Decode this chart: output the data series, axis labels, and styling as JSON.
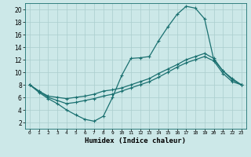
{
  "xlabel": "Humidex (Indice chaleur)",
  "bg_color": "#cce8e8",
  "grid_color": "#aacece",
  "line_color": "#1a7070",
  "xlim": [
    -0.5,
    23.5
  ],
  "ylim": [
    1,
    21
  ],
  "xticks": [
    0,
    1,
    2,
    3,
    4,
    5,
    6,
    7,
    8,
    9,
    10,
    11,
    12,
    13,
    14,
    15,
    16,
    17,
    18,
    19,
    20,
    21,
    22,
    23
  ],
  "yticks": [
    2,
    4,
    6,
    8,
    10,
    12,
    14,
    16,
    18,
    20
  ],
  "line1_x": [
    0,
    1,
    2,
    3,
    4,
    5,
    6,
    7,
    8,
    9,
    10,
    11,
    12,
    13,
    14,
    15,
    16,
    17,
    18,
    19,
    20,
    21,
    22,
    23
  ],
  "line1_y": [
    8.0,
    6.8,
    5.8,
    5.0,
    4.0,
    3.2,
    2.5,
    2.2,
    3.0,
    6.0,
    9.5,
    12.2,
    12.3,
    12.5,
    15.0,
    17.2,
    19.2,
    20.5,
    20.2,
    18.5,
    12.0,
    10.2,
    8.8,
    8.0
  ],
  "line2_x": [
    0,
    1,
    2,
    3,
    4,
    5,
    6,
    7,
    8,
    9,
    10,
    11,
    12,
    13,
    14,
    15,
    16,
    17,
    18,
    19,
    20,
    21,
    22,
    23
  ],
  "line2_y": [
    8.0,
    7.0,
    6.2,
    6.0,
    5.8,
    6.0,
    6.2,
    6.5,
    7.0,
    7.2,
    7.5,
    8.0,
    8.5,
    9.0,
    9.8,
    10.5,
    11.2,
    12.0,
    12.5,
    13.0,
    12.2,
    10.2,
    9.0,
    8.0
  ],
  "line3_x": [
    0,
    1,
    2,
    3,
    4,
    5,
    6,
    7,
    8,
    9,
    10,
    11,
    12,
    13,
    14,
    15,
    16,
    17,
    18,
    19,
    20,
    21,
    22,
    23
  ],
  "line3_y": [
    8.0,
    7.0,
    6.0,
    5.5,
    5.0,
    5.2,
    5.5,
    5.8,
    6.2,
    6.5,
    7.0,
    7.5,
    8.0,
    8.5,
    9.2,
    10.0,
    10.8,
    11.5,
    12.0,
    12.5,
    11.8,
    9.8,
    8.5,
    8.0
  ],
  "marker": "+",
  "markersize": 3,
  "linewidth": 0.9
}
